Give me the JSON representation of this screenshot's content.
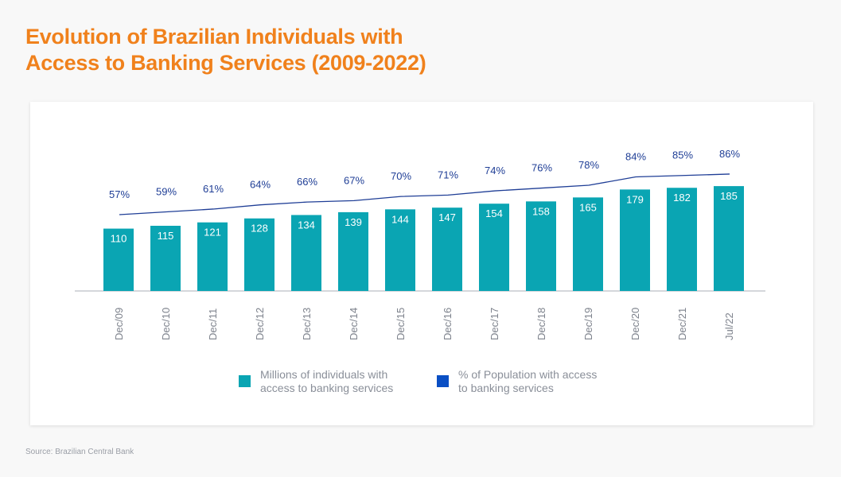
{
  "title_line1": "Evolution of Brazilian Individuals with",
  "title_line2": "Access to Banking Services (2009-2022)",
  "source": "Source: Brazilian Central Bank",
  "colors": {
    "bars": "#0aa5b3",
    "line": "#1f3e96",
    "legend_line": "#0a4fc4",
    "title": "#f0811c"
  },
  "chart_data": {
    "type": "bar+line",
    "categories": [
      "Dec/09",
      "Dec/10",
      "Dec/11",
      "Dec/12",
      "Dec/13",
      "Dec/14",
      "Dec/15",
      "Dec/16",
      "Dec/17",
      "Dec/18",
      "Dec/19",
      "Dec/20",
      "Dec/21",
      "Jul/22"
    ],
    "series": [
      {
        "name": "Millions of individuals with access to banking services",
        "type": "bar",
        "values": [
          110,
          115,
          121,
          128,
          134,
          139,
          144,
          147,
          154,
          158,
          165,
          179,
          182,
          185
        ]
      },
      {
        "name": "% of Population with access to banking services",
        "type": "line",
        "values": [
          57,
          59,
          61,
          64,
          66,
          67,
          70,
          71,
          74,
          76,
          78,
          84,
          85,
          86
        ],
        "unit": "%"
      }
    ],
    "legend_placement": "bottom",
    "grid": false
  },
  "legend": {
    "bar_line1": "Millions of individuals with",
    "bar_line2": "access to banking services",
    "line_line1": "% of Population with access",
    "line_line2": "to banking services"
  }
}
